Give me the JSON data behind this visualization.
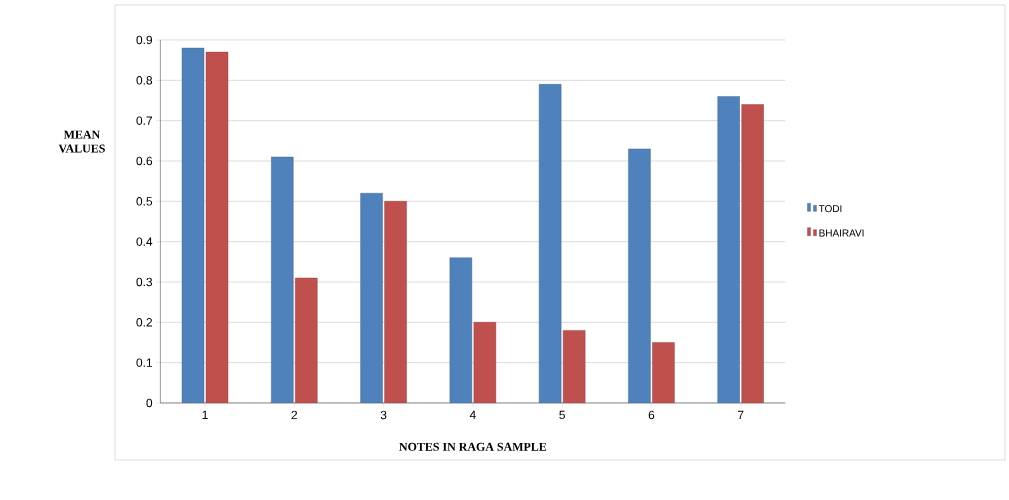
{
  "chart_data": {
    "type": "bar",
    "xlabel": "NOTES  IN  RAGA   SAMPLE",
    "ylabel": "MEAN VALUES",
    "categories": [
      "1",
      "2",
      "3",
      "4",
      "5",
      "6",
      "7"
    ],
    "series": [
      {
        "name": "TODI",
        "color": "#4f81bd",
        "values": [
          0.88,
          0.61,
          0.52,
          0.36,
          0.79,
          0.63,
          0.76
        ]
      },
      {
        "name": "BHAIRAVI",
        "color": "#c0504d",
        "values": [
          0.87,
          0.31,
          0.5,
          0.2,
          0.18,
          0.15,
          0.74
        ]
      }
    ],
    "ylim": [
      0,
      0.9
    ],
    "yticks": [
      0,
      0.1,
      0.2,
      0.3,
      0.4,
      0.5,
      0.6,
      0.7,
      0.8,
      0.9
    ],
    "grid": "y",
    "legend": "right"
  }
}
